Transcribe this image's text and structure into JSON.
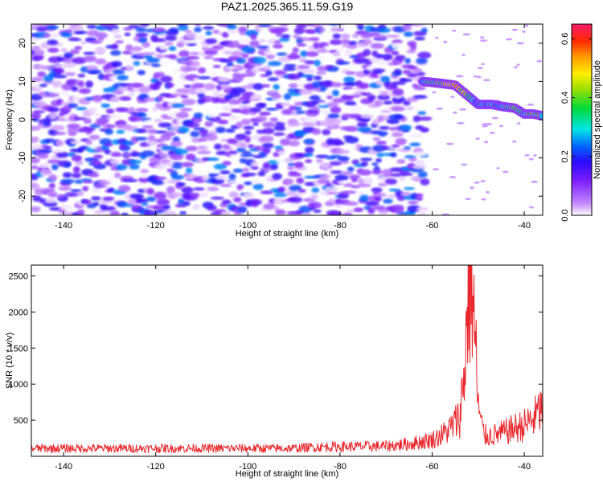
{
  "title": "PAZ1.2025.365.11.59.G19",
  "chart_data": [
    {
      "type": "heatmap",
      "name": "spectrogram",
      "xlabel": "Height of straight line (km)",
      "ylabel": "Frequency (Hz)",
      "xlim": [
        -147,
        -36
      ],
      "ylim": [
        -25,
        25
      ],
      "xticks": [
        -140,
        -120,
        -100,
        -80,
        -60,
        -40
      ],
      "yticks": [
        -20,
        -10,
        0,
        10,
        20
      ],
      "noise_region_km": [
        -147,
        -62
      ],
      "noise_amplitude_range": [
        0.0,
        0.25
      ],
      "signal_track": {
        "x": [
          -62,
          -58,
          -55,
          -52,
          -50,
          -47,
          -45,
          -42,
          -40,
          -38,
          -36
        ],
        "freq": [
          10,
          9.5,
          9,
          6,
          4,
          4,
          3.5,
          3,
          1.5,
          1.5,
          1
        ],
        "amplitude": [
          0.3,
          0.45,
          0.6,
          0.35,
          0.25,
          0.3,
          0.3,
          0.4,
          0.3,
          0.45,
          0.35
        ]
      },
      "colorbar": {
        "label": "Normalized spectral amplitude",
        "range": [
          0.0,
          0.65
        ],
        "ticks": [
          0.0,
          0.2,
          0.4,
          0.6
        ],
        "tick_labels": [
          "0.0",
          "0.2",
          "0.4",
          "0.6"
        ]
      }
    },
    {
      "type": "line",
      "name": "snr",
      "xlabel": "Height of straight line (km)",
      "ylabel": "SNR (10 * v/v)",
      "xlim": [
        -147,
        -36
      ],
      "ylim": [
        0,
        2650
      ],
      "xticks": [
        -140,
        -120,
        -100,
        -80,
        -60,
        -40
      ],
      "yticks": [
        500,
        1000,
        1500,
        2000,
        2500
      ],
      "series": [
        {
          "name": "SNR",
          "color": "#e8262b",
          "anchors_x": [
            -147,
            -90,
            -85,
            -70,
            -65,
            -60,
            -58,
            -56,
            -54,
            -53,
            -52.5,
            -52,
            -51.5,
            -51,
            -50.5,
            -50,
            -49.5,
            -49,
            -48.5,
            -48,
            -46,
            -44,
            -42,
            -40,
            -38,
            -37,
            -36
          ],
          "anchors_y": [
            110,
            110,
            130,
            140,
            170,
            230,
            290,
            390,
            550,
            1150,
            1850,
            2450,
            2600,
            2000,
            1400,
            700,
            500,
            350,
            290,
            280,
            300,
            340,
            390,
            430,
            520,
            600,
            680
          ],
          "noise_spread": 0.55
        }
      ]
    }
  ]
}
